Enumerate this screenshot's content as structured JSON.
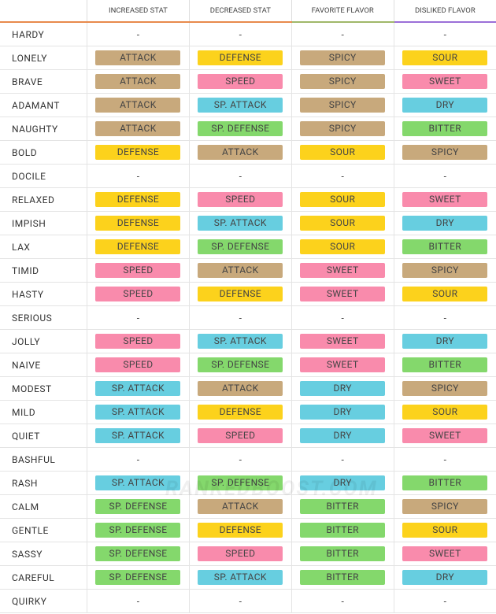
{
  "table": {
    "headers": [
      "INCREASED STAT",
      "DECREASED STAT",
      "FAVORITE FLAVOR",
      "DISLIKED FLAVOR"
    ],
    "watermark": "RANKEDBOOST.COM",
    "rows": [
      {
        "name": "HARDY",
        "cells": [
          "-",
          "-",
          "-",
          "-"
        ]
      },
      {
        "name": "LONELY",
        "cells": [
          {
            "label": "ATTACK",
            "color": "#c8a97c"
          },
          {
            "label": "DEFENSE",
            "color": "#fcd21c"
          },
          {
            "label": "SPICY",
            "color": "#c8a97c"
          },
          {
            "label": "SOUR",
            "color": "#fcd21c"
          }
        ]
      },
      {
        "name": "BRAVE",
        "cells": [
          {
            "label": "ATTACK",
            "color": "#c8a97c"
          },
          {
            "label": "SPEED",
            "color": "#f98bac"
          },
          {
            "label": "SPICY",
            "color": "#c8a97c"
          },
          {
            "label": "SWEET",
            "color": "#f98bac"
          }
        ]
      },
      {
        "name": "ADAMANT",
        "cells": [
          {
            "label": "ATTACK",
            "color": "#c8a97c"
          },
          {
            "label": "SP. ATTACK",
            "color": "#67cee0"
          },
          {
            "label": "SPICY",
            "color": "#c8a97c"
          },
          {
            "label": "DRY",
            "color": "#67cee0"
          }
        ]
      },
      {
        "name": "NAUGHTY",
        "cells": [
          {
            "label": "ATTACK",
            "color": "#c8a97c"
          },
          {
            "label": "SP. DEFENSE",
            "color": "#84d86c"
          },
          {
            "label": "SPICY",
            "color": "#c8a97c"
          },
          {
            "label": "BITTER",
            "color": "#84d86c"
          }
        ]
      },
      {
        "name": "BOLD",
        "cells": [
          {
            "label": "DEFENSE",
            "color": "#fcd21c"
          },
          {
            "label": "ATTACK",
            "color": "#c8a97c"
          },
          {
            "label": "SOUR",
            "color": "#fcd21c"
          },
          {
            "label": "SPICY",
            "color": "#c8a97c"
          }
        ]
      },
      {
        "name": "DOCILE",
        "cells": [
          "-",
          "-",
          "-",
          "-"
        ]
      },
      {
        "name": "RELAXED",
        "cells": [
          {
            "label": "DEFENSE",
            "color": "#fcd21c"
          },
          {
            "label": "SPEED",
            "color": "#f98bac"
          },
          {
            "label": "SOUR",
            "color": "#fcd21c"
          },
          {
            "label": "SWEET",
            "color": "#f98bac"
          }
        ]
      },
      {
        "name": "IMPISH",
        "cells": [
          {
            "label": "DEFENSE",
            "color": "#fcd21c"
          },
          {
            "label": "SP. ATTACK",
            "color": "#67cee0"
          },
          {
            "label": "SOUR",
            "color": "#fcd21c"
          },
          {
            "label": "DRY",
            "color": "#67cee0"
          }
        ]
      },
      {
        "name": "LAX",
        "cells": [
          {
            "label": "DEFENSE",
            "color": "#fcd21c"
          },
          {
            "label": "SP. DEFENSE",
            "color": "#84d86c"
          },
          {
            "label": "SOUR",
            "color": "#fcd21c"
          },
          {
            "label": "BITTER",
            "color": "#84d86c"
          }
        ]
      },
      {
        "name": "TIMID",
        "cells": [
          {
            "label": "SPEED",
            "color": "#f98bac"
          },
          {
            "label": "ATTACK",
            "color": "#c8a97c"
          },
          {
            "label": "SWEET",
            "color": "#f98bac"
          },
          {
            "label": "SPICY",
            "color": "#c8a97c"
          }
        ]
      },
      {
        "name": "HASTY",
        "cells": [
          {
            "label": "SPEED",
            "color": "#f98bac"
          },
          {
            "label": "DEFENSE",
            "color": "#fcd21c"
          },
          {
            "label": "SWEET",
            "color": "#f98bac"
          },
          {
            "label": "SOUR",
            "color": "#fcd21c"
          }
        ]
      },
      {
        "name": "SERIOUS",
        "cells": [
          "-",
          "-",
          "-",
          "-"
        ]
      },
      {
        "name": "JOLLY",
        "cells": [
          {
            "label": "SPEED",
            "color": "#f98bac"
          },
          {
            "label": "SP. ATTACK",
            "color": "#67cee0"
          },
          {
            "label": "SWEET",
            "color": "#f98bac"
          },
          {
            "label": "DRY",
            "color": "#67cee0"
          }
        ]
      },
      {
        "name": "NAIVE",
        "cells": [
          {
            "label": "SPEED",
            "color": "#f98bac"
          },
          {
            "label": "SP. DEFENSE",
            "color": "#84d86c"
          },
          {
            "label": "SWEET",
            "color": "#f98bac"
          },
          {
            "label": "BITTER",
            "color": "#84d86c"
          }
        ]
      },
      {
        "name": "MODEST",
        "cells": [
          {
            "label": "SP. ATTACK",
            "color": "#67cee0"
          },
          {
            "label": "ATTACK",
            "color": "#c8a97c"
          },
          {
            "label": "DRY",
            "color": "#67cee0"
          },
          {
            "label": "SPICY",
            "color": "#c8a97c"
          }
        ]
      },
      {
        "name": "MILD",
        "cells": [
          {
            "label": "SP. ATTACK",
            "color": "#67cee0"
          },
          {
            "label": "DEFENSE",
            "color": "#fcd21c"
          },
          {
            "label": "DRY",
            "color": "#67cee0"
          },
          {
            "label": "SOUR",
            "color": "#fcd21c"
          }
        ]
      },
      {
        "name": "QUIET",
        "cells": [
          {
            "label": "SP. ATTACK",
            "color": "#67cee0"
          },
          {
            "label": "SPEED",
            "color": "#f98bac"
          },
          {
            "label": "DRY",
            "color": "#67cee0"
          },
          {
            "label": "SWEET",
            "color": "#f98bac"
          }
        ]
      },
      {
        "name": "BASHFUL",
        "cells": [
          "-",
          "-",
          "-",
          "-"
        ]
      },
      {
        "name": "RASH",
        "cells": [
          {
            "label": "SP. ATTACK",
            "color": "#67cee0"
          },
          {
            "label": "SP. DEFENSE",
            "color": "#84d86c"
          },
          {
            "label": "DRY",
            "color": "#67cee0"
          },
          {
            "label": "BITTER",
            "color": "#84d86c"
          }
        ]
      },
      {
        "name": "CALM",
        "cells": [
          {
            "label": "SP. DEFENSE",
            "color": "#84d86c"
          },
          {
            "label": "ATTACK",
            "color": "#c8a97c"
          },
          {
            "label": "BITTER",
            "color": "#84d86c"
          },
          {
            "label": "SPICY",
            "color": "#c8a97c"
          }
        ]
      },
      {
        "name": "GENTLE",
        "cells": [
          {
            "label": "SP. DEFENSE",
            "color": "#84d86c"
          },
          {
            "label": "DEFENSE",
            "color": "#fcd21c"
          },
          {
            "label": "BITTER",
            "color": "#84d86c"
          },
          {
            "label": "SOUR",
            "color": "#fcd21c"
          }
        ]
      },
      {
        "name": "SASSY",
        "cells": [
          {
            "label": "SP. DEFENSE",
            "color": "#84d86c"
          },
          {
            "label": "SPEED",
            "color": "#f98bac"
          },
          {
            "label": "BITTER",
            "color": "#84d86c"
          },
          {
            "label": "SWEET",
            "color": "#f98bac"
          }
        ]
      },
      {
        "name": "CAREFUL",
        "cells": [
          {
            "label": "SP. DEFENSE",
            "color": "#84d86c"
          },
          {
            "label": "SP. ATTACK",
            "color": "#67cee0"
          },
          {
            "label": "BITTER",
            "color": "#84d86c"
          },
          {
            "label": "DRY",
            "color": "#67cee0"
          }
        ]
      },
      {
        "name": "QUIRKY",
        "cells": [
          "-",
          "-",
          "-",
          "-"
        ]
      }
    ]
  }
}
